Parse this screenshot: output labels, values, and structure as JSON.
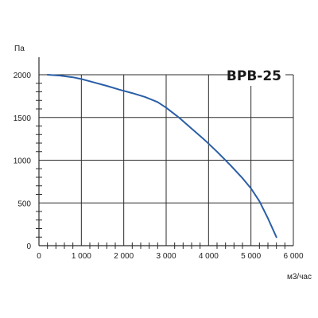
{
  "chart_data": {
    "type": "line",
    "title": "ВРВ-25",
    "xlabel": "м3/час",
    "ylabel": "Па",
    "xlim": [
      0,
      6000
    ],
    "ylim": [
      0,
      2000
    ],
    "x_ticks": [
      0,
      1000,
      2000,
      3000,
      4000,
      5000,
      6000
    ],
    "x_tick_labels": [
      "0",
      "1 000",
      "2 000",
      "3 000",
      "4 000",
      "5 000",
      "6 000"
    ],
    "y_ticks": [
      0,
      500,
      1000,
      1500,
      2000
    ],
    "y_tick_labels": [
      "0",
      "500",
      "1000",
      "1500",
      "2000"
    ],
    "grid": true,
    "series": [
      {
        "color": "#2a5ea6",
        "points": [
          [
            200,
            2000
          ],
          [
            500,
            1990
          ],
          [
            800,
            1970
          ],
          [
            1000,
            1950
          ],
          [
            1300,
            1910
          ],
          [
            1600,
            1870
          ],
          [
            1900,
            1825
          ],
          [
            2200,
            1785
          ],
          [
            2500,
            1740
          ],
          [
            2800,
            1680
          ],
          [
            3000,
            1615
          ],
          [
            3300,
            1500
          ],
          [
            3600,
            1370
          ],
          [
            3900,
            1240
          ],
          [
            4200,
            1100
          ],
          [
            4500,
            950
          ],
          [
            4800,
            790
          ],
          [
            5000,
            670
          ],
          [
            5200,
            520
          ],
          [
            5400,
            320
          ],
          [
            5600,
            100
          ]
        ]
      }
    ]
  }
}
